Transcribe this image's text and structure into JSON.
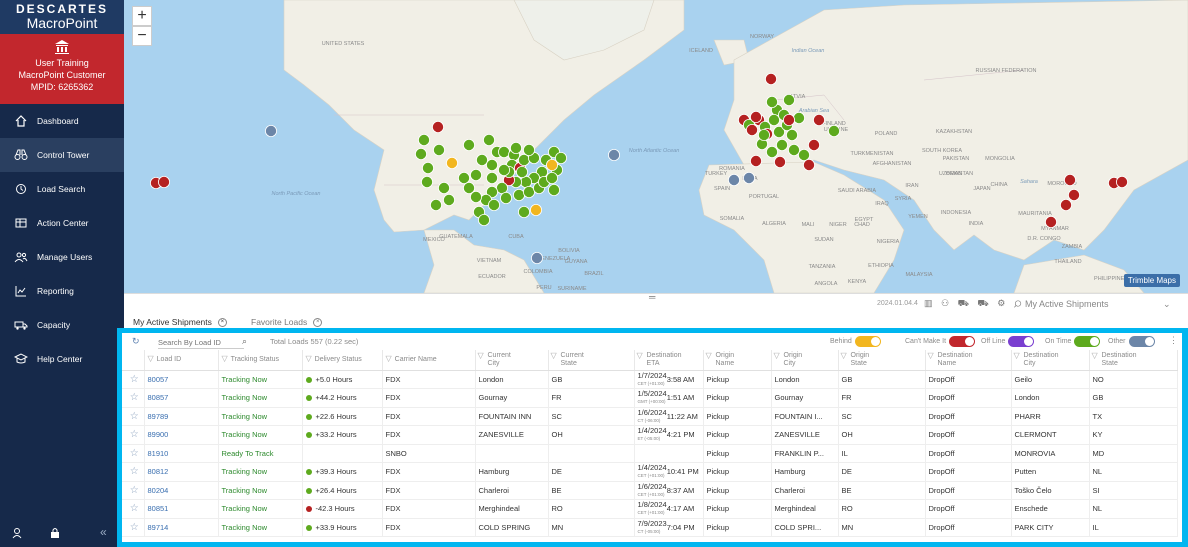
{
  "brand": {
    "line1": "DESCARTES",
    "line2": "MacroPoint"
  },
  "user": {
    "name": "User Training",
    "company": "MacroPoint Customer",
    "mpid": "MPID: 6265362"
  },
  "nav": [
    {
      "label": "Dashboard",
      "icon": "home-icon"
    },
    {
      "label": "Control Tower",
      "icon": "binoculars-icon"
    },
    {
      "label": "Load Search",
      "icon": "history-icon"
    },
    {
      "label": "Action Center",
      "icon": "table-icon"
    },
    {
      "label": "Manage Users",
      "icon": "users-icon"
    },
    {
      "label": "Reporting",
      "icon": "chart-icon"
    },
    {
      "label": "Capacity",
      "icon": "truck-icon"
    },
    {
      "label": "Help Center",
      "icon": "graduation-cap-icon"
    }
  ],
  "map": {
    "zoom_in": "+",
    "zoom_out": "−",
    "attribution": "Trimble Maps",
    "labels": [
      {
        "text": "UNITED STATES",
        "kind": "country"
      },
      {
        "text": "North Pacific Ocean",
        "kind": "ocean"
      },
      {
        "text": "North Atlantic Ocean",
        "kind": "ocean"
      },
      {
        "text": "MEXICO",
        "kind": "country"
      },
      {
        "text": "GUATEMALA",
        "kind": "country"
      },
      {
        "text": "CUBA",
        "kind": "country"
      },
      {
        "text": "VENEZUELA",
        "kind": "country"
      },
      {
        "text": "COLOMBIA",
        "kind": "country"
      },
      {
        "text": "ECUADOR",
        "kind": "country"
      },
      {
        "text": "PERU",
        "kind": "country"
      },
      {
        "text": "BRAZIL",
        "kind": "country"
      },
      {
        "text": "ICELAND",
        "kind": "country"
      },
      {
        "text": "NORWAY",
        "kind": "country"
      },
      {
        "text": "LATVIA",
        "kind": "country"
      },
      {
        "text": "UKRAINE",
        "kind": "country"
      },
      {
        "text": "RUSSIAN FEDERATION",
        "kind": "country"
      },
      {
        "text": "KAZAKHSTAN",
        "kind": "country"
      },
      {
        "text": "MONGOLIA",
        "kind": "country"
      },
      {
        "text": "CHINA",
        "kind": "country"
      },
      {
        "text": "INDIA",
        "kind": "country"
      },
      {
        "text": "IRAN",
        "kind": "country"
      },
      {
        "text": "SAUDI ARABIA",
        "kind": "country"
      },
      {
        "text": "EGYPT",
        "kind": "country"
      },
      {
        "text": "LIBYA",
        "kind": "country"
      },
      {
        "text": "ALGERIA",
        "kind": "country"
      },
      {
        "text": "MALI",
        "kind": "country"
      },
      {
        "text": "NIGER",
        "kind": "country"
      },
      {
        "text": "CHAD",
        "kind": "country"
      },
      {
        "text": "SUDAN",
        "kind": "country"
      },
      {
        "text": "NIGERIA",
        "kind": "country"
      },
      {
        "text": "ETHIOPIA",
        "kind": "country"
      },
      {
        "text": "KENYA",
        "kind": "country"
      },
      {
        "text": "TANZANIA",
        "kind": "country"
      },
      {
        "text": "ANGOLA",
        "kind": "country"
      },
      {
        "text": "D.R. CONGO",
        "kind": "country"
      },
      {
        "text": "ZAMBIA",
        "kind": "country"
      },
      {
        "text": "THAILAND",
        "kind": "country"
      },
      {
        "text": "PHILIPPINES",
        "kind": "country"
      },
      {
        "text": "MALAYSIA",
        "kind": "country"
      },
      {
        "text": "INDONESIA",
        "kind": "country"
      },
      {
        "text": "Indian Ocean",
        "kind": "ocean"
      },
      {
        "text": "Arabian Sea",
        "kind": "ocean"
      },
      {
        "text": "FINLAND",
        "kind": "country"
      },
      {
        "text": "POLAND",
        "kind": "country"
      },
      {
        "text": "ROMANIA",
        "kind": "country"
      },
      {
        "text": "TURKEY",
        "kind": "country"
      },
      {
        "text": "SPAIN",
        "kind": "country"
      },
      {
        "text": "PORTUGAL",
        "kind": "country"
      },
      {
        "text": "MOROCCO",
        "kind": "country"
      },
      {
        "text": "Sahara",
        "kind": "region"
      },
      {
        "text": "JAPAN",
        "kind": "country"
      },
      {
        "text": "SOUTH KOREA",
        "kind": "country"
      },
      {
        "text": "PAKISTAN",
        "kind": "country"
      },
      {
        "text": "UZBEKISTAN",
        "kind": "country"
      },
      {
        "text": "TURKMENISTAN",
        "kind": "country"
      },
      {
        "text": "AFGHANISTAN",
        "kind": "country"
      },
      {
        "text": "IRAQ",
        "kind": "country"
      },
      {
        "text": "SYRIA",
        "kind": "country"
      },
      {
        "text": "YEMEN",
        "kind": "country"
      },
      {
        "text": "OMAN",
        "kind": "country"
      },
      {
        "text": "SOMALIA",
        "kind": "country"
      },
      {
        "text": "MAURITANIA",
        "kind": "country"
      },
      {
        "text": "MYANMAR",
        "kind": "country"
      },
      {
        "text": "VIETNAM",
        "kind": "country"
      },
      {
        "text": "BOLIVIA",
        "kind": "country"
      },
      {
        "text": "GUYANA",
        "kind": "country"
      },
      {
        "text": "SURINAME",
        "kind": "country"
      }
    ],
    "status_colors": {
      "on_time": "#5eaa1e",
      "behind": "#f2b61f",
      "cant_make_it": "#b52121",
      "other": "#6c86a8"
    }
  },
  "strip": {
    "version": "2024.01.04.4",
    "dropdown": "My Active Shipments"
  },
  "tabs": [
    {
      "label": "My Active Shipments"
    },
    {
      "label": "Favorite Loads"
    }
  ],
  "toolbar": {
    "search_placeholder": "Search By Load ID",
    "total": "Total Loads 557 (0.22 sec)",
    "toggles": [
      {
        "label": "Behind",
        "color": "#f2b61f"
      },
      {
        "label": "Can't Make It",
        "color": "#c1272d"
      },
      {
        "label": "Off Line",
        "color": "#7a3fd0"
      },
      {
        "label": "On Time",
        "color": "#5eaa1e"
      },
      {
        "label": "Other",
        "color": "#6c86a8"
      }
    ]
  },
  "columns": [
    {
      "l1": "Load ID",
      "l2": ""
    },
    {
      "l1": "Tracking Status",
      "l2": ""
    },
    {
      "l1": "Delivery Status",
      "l2": ""
    },
    {
      "l1": "Carrier Name",
      "l2": ""
    },
    {
      "l1": "Current",
      "l2": "City"
    },
    {
      "l1": "Current",
      "l2": "State"
    },
    {
      "l1": "Destination",
      "l2": "ETA"
    },
    {
      "l1": "Origin",
      "l2": "Name"
    },
    {
      "l1": "Origin",
      "l2": "City"
    },
    {
      "l1": "Origin",
      "l2": "State"
    },
    {
      "l1": "Destination",
      "l2": "Name"
    },
    {
      "l1": "Destination",
      "l2": "City"
    },
    {
      "l1": "Destination",
      "l2": "State"
    }
  ],
  "rows": [
    {
      "id": "80057",
      "tracking": "Tracking Now",
      "delivery": "+5.0 Hours",
      "dot": "#5eaa1e",
      "carrier": "FDX",
      "cur_city": "London",
      "cur_state": "GB",
      "eta_date": "1/7/2024",
      "eta_tz": "CET (+01:00)",
      "eta_time": "3:58 AM",
      "o_name": "Pickup",
      "o_city": "London",
      "o_state": "GB",
      "d_name": "DropOff",
      "d_city": "Geilo",
      "d_state": "NO"
    },
    {
      "id": "80857",
      "tracking": "Tracking Now",
      "delivery": "+44.2 Hours",
      "dot": "#5eaa1e",
      "carrier": "FDX",
      "cur_city": "Gournay",
      "cur_state": "FR",
      "eta_date": "1/5/2024",
      "eta_tz": "GMT (+00:00)",
      "eta_time": "1:51 AM",
      "o_name": "Pickup",
      "o_city": "Gournay",
      "o_state": "FR",
      "d_name": "DropOff",
      "d_city": "London",
      "d_state": "GB"
    },
    {
      "id": "89789",
      "tracking": "Tracking Now",
      "delivery": "+22.6 Hours",
      "dot": "#5eaa1e",
      "carrier": "FDX",
      "cur_city": "FOUNTAIN INN",
      "cur_state": "SC",
      "eta_date": "1/6/2024",
      "eta_tz": "CT (-06:00)",
      "eta_time": "11:22 AM",
      "o_name": "Pickup",
      "o_city": "FOUNTAIN I...",
      "o_state": "SC",
      "d_name": "DropOff",
      "d_city": "PHARR",
      "d_state": "TX"
    },
    {
      "id": "89900",
      "tracking": "Tracking Now",
      "delivery": "+33.2 Hours",
      "dot": "#5eaa1e",
      "carrier": "FDX",
      "cur_city": "ZANESVILLE",
      "cur_state": "OH",
      "eta_date": "1/4/2024",
      "eta_tz": "ET (-05:00)",
      "eta_time": "4:21 PM",
      "o_name": "Pickup",
      "o_city": "ZANESVILLE",
      "o_state": "OH",
      "d_name": "DropOff",
      "d_city": "CLERMONT",
      "d_state": "KY"
    },
    {
      "id": "81910",
      "tracking": "Ready To Track",
      "delivery": "",
      "dot": "",
      "carrier": "SNBO",
      "cur_city": "",
      "cur_state": "",
      "eta_date": "",
      "eta_tz": "",
      "eta_time": "",
      "o_name": "Pickup",
      "o_city": "FRANKLIN P...",
      "o_state": "IL",
      "d_name": "DropOff",
      "d_city": "MONROVIA",
      "d_state": "MD"
    },
    {
      "id": "80812",
      "tracking": "Tracking Now",
      "delivery": "+39.3 Hours",
      "dot": "#5eaa1e",
      "carrier": "FDX",
      "cur_city": "Hamburg",
      "cur_state": "DE",
      "eta_date": "1/4/2024",
      "eta_tz": "CET (+01:00)",
      "eta_time": "10:41 PM",
      "o_name": "Pickup",
      "o_city": "Hamburg",
      "o_state": "DE",
      "d_name": "DropOff",
      "d_city": "Putten",
      "d_state": "NL"
    },
    {
      "id": "80204",
      "tracking": "Tracking Now",
      "delivery": "+26.4 Hours",
      "dot": "#5eaa1e",
      "carrier": "FDX",
      "cur_city": "Charleroi",
      "cur_state": "BE",
      "eta_date": "1/6/2024",
      "eta_tz": "CET (+01:00)",
      "eta_time": "8:37 AM",
      "o_name": "Pickup",
      "o_city": "Charleroi",
      "o_state": "BE",
      "d_name": "DropOff",
      "d_city": "Toško Čelo",
      "d_state": "SI"
    },
    {
      "id": "80851",
      "tracking": "Tracking Now",
      "delivery": "-42.3 Hours",
      "dot": "#b52121",
      "carrier": "FDX",
      "cur_city": "Merghindeal",
      "cur_state": "RO",
      "eta_date": "1/8/2024",
      "eta_tz": "CET (+01:00)",
      "eta_time": "4:17 AM",
      "o_name": "Pickup",
      "o_city": "Merghindeal",
      "o_state": "RO",
      "d_name": "DropOff",
      "d_city": "Enschede",
      "d_state": "NL"
    },
    {
      "id": "89714",
      "tracking": "Tracking Now",
      "delivery": "+33.9 Hours",
      "dot": "#5eaa1e",
      "carrier": "FDX",
      "cur_city": "COLD SPRING",
      "cur_state": "MN",
      "eta_date": "7/9/2023",
      "eta_tz": "CT (-05:00)",
      "eta_time": "7:04 PM",
      "o_name": "Pickup",
      "o_city": "COLD SPRI...",
      "o_state": "MN",
      "d_name": "DropOff",
      "d_city": "PARK CITY",
      "d_state": "IL"
    }
  ]
}
